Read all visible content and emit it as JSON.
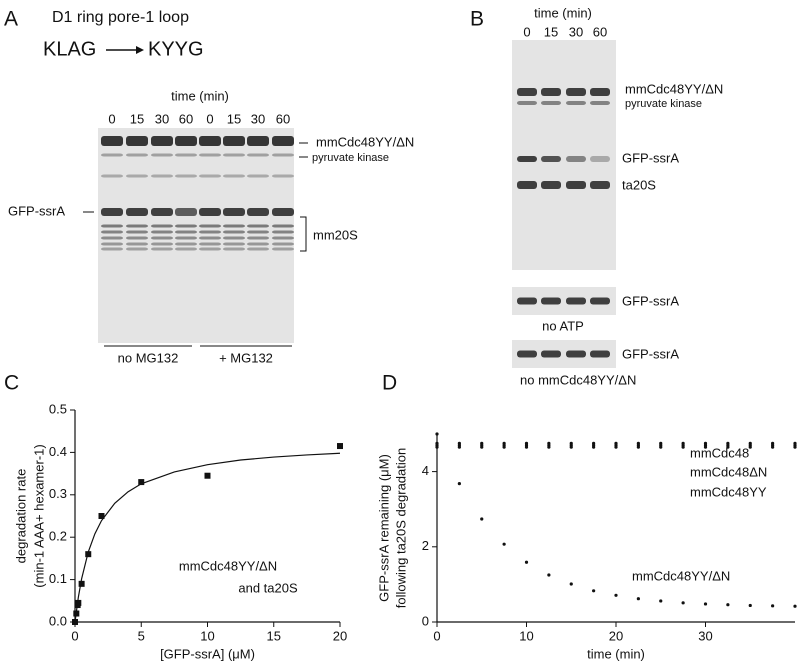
{
  "panel_labels": [
    "A",
    "B",
    "C",
    "D"
  ],
  "panel_a": {
    "title": "D1 ring pore-1 loop",
    "mutation_from": "KLAG",
    "mutation_to": "KYYG",
    "time_label": "time (min)",
    "times": [
      "0",
      "15",
      "30",
      "60",
      "0",
      "15",
      "30",
      "60"
    ],
    "band_labels": [
      "mmCdc48YY/ΔN",
      "pyruvate kinase",
      "mm20S"
    ],
    "left_label": "GFP-ssrA",
    "groups": [
      "no MG132",
      "+ MG132"
    ]
  },
  "panel_b": {
    "time_label": "time (min)",
    "times": [
      "0",
      "15",
      "30",
      "60"
    ],
    "band_labels": [
      "mmCdc48YY/ΔN",
      "pyruvate kinase",
      "GFP-ssrA",
      "ta20S"
    ],
    "control_labels": [
      "GFP-ssrA",
      "no ATP",
      "GFP-ssrA",
      "no mmCdc48YY/ΔN"
    ]
  },
  "chart_data": [
    {
      "type": "scatter",
      "xlabel": "[GFP-ssrA] (μM)",
      "ylabel": [
        "degradation rate",
        "(min-1 AAA+ hexamer-1)"
      ],
      "annotation": [
        "mmCdc48YY/ΔN",
        "and ta20S"
      ],
      "color": "#111111",
      "x": [
        0,
        0.1,
        0.2,
        0.25,
        0.5,
        1,
        2,
        5,
        10,
        20
      ],
      "values": [
        0,
        0.02,
        0.04,
        0.045,
        0.09,
        0.16,
        0.25,
        0.33,
        0.345,
        0.415
      ],
      "fit": {
        "x": [
          0,
          0.25,
          0.5,
          1,
          1.5,
          2,
          3,
          4,
          5,
          7.5,
          10,
          12.5,
          15,
          17.5,
          20
        ],
        "values": [
          0,
          0.058,
          0.102,
          0.165,
          0.208,
          0.239,
          0.28,
          0.307,
          0.326,
          0.354,
          0.371,
          0.382,
          0.389,
          0.394,
          0.398
        ]
      },
      "xlim": [
        0,
        20
      ],
      "ylim": [
        0,
        0.5
      ],
      "xticks": [
        0,
        5,
        10,
        15,
        20
      ],
      "yticks": [
        {
          "value": 0,
          "label": "0.0"
        },
        0.1,
        0.2,
        0.3,
        0.4,
        0.5
      ]
    },
    {
      "type": "scatter",
      "xlabel": "time (min)",
      "ylabel": [
        "GFP-ssrA remaining (μM)",
        "following ta20S degradation"
      ],
      "x": [
        0,
        2.5,
        5,
        7.5,
        10,
        12.5,
        15,
        17.5,
        20,
        22.5,
        25,
        27.5,
        30,
        32.5,
        35,
        37.5,
        40
      ],
      "series": [
        {
          "name": "mmCdc48",
          "color": "#111111",
          "values": [
            4.75,
            4.75,
            4.75,
            4.75,
            4.75,
            4.75,
            4.75,
            4.75,
            4.75,
            4.75,
            4.75,
            4.75,
            4.75,
            4.75,
            4.75,
            4.75,
            4.75
          ]
        },
        {
          "name": "mmCdc48ΔN",
          "color": "#111111",
          "values": [
            4.7,
            4.7,
            4.7,
            4.7,
            4.7,
            4.7,
            4.7,
            4.7,
            4.7,
            4.7,
            4.7,
            4.7,
            4.7,
            4.7,
            4.7,
            4.7,
            4.7
          ]
        },
        {
          "name": "mmCdc48YY",
          "color": "#111111",
          "values": [
            4.65,
            4.65,
            4.65,
            4.65,
            4.65,
            4.65,
            4.65,
            4.65,
            4.65,
            4.65,
            4.65,
            4.65,
            4.65,
            4.65,
            4.65,
            4.65,
            4.65
          ]
        },
        {
          "name": "mmCdc48YY/ΔN",
          "color": "#111111",
          "values": [
            5.0,
            3.68,
            2.74,
            2.07,
            1.59,
            1.25,
            1.01,
            0.83,
            0.71,
            0.62,
            0.56,
            0.51,
            0.48,
            0.46,
            0.44,
            0.43,
            0.42
          ]
        }
      ],
      "xlim": [
        0,
        40
      ],
      "ylim": [
        0,
        5
      ],
      "xticks": [
        0,
        10,
        20,
        30
      ],
      "yticks": [
        0,
        2,
        4
      ]
    }
  ]
}
